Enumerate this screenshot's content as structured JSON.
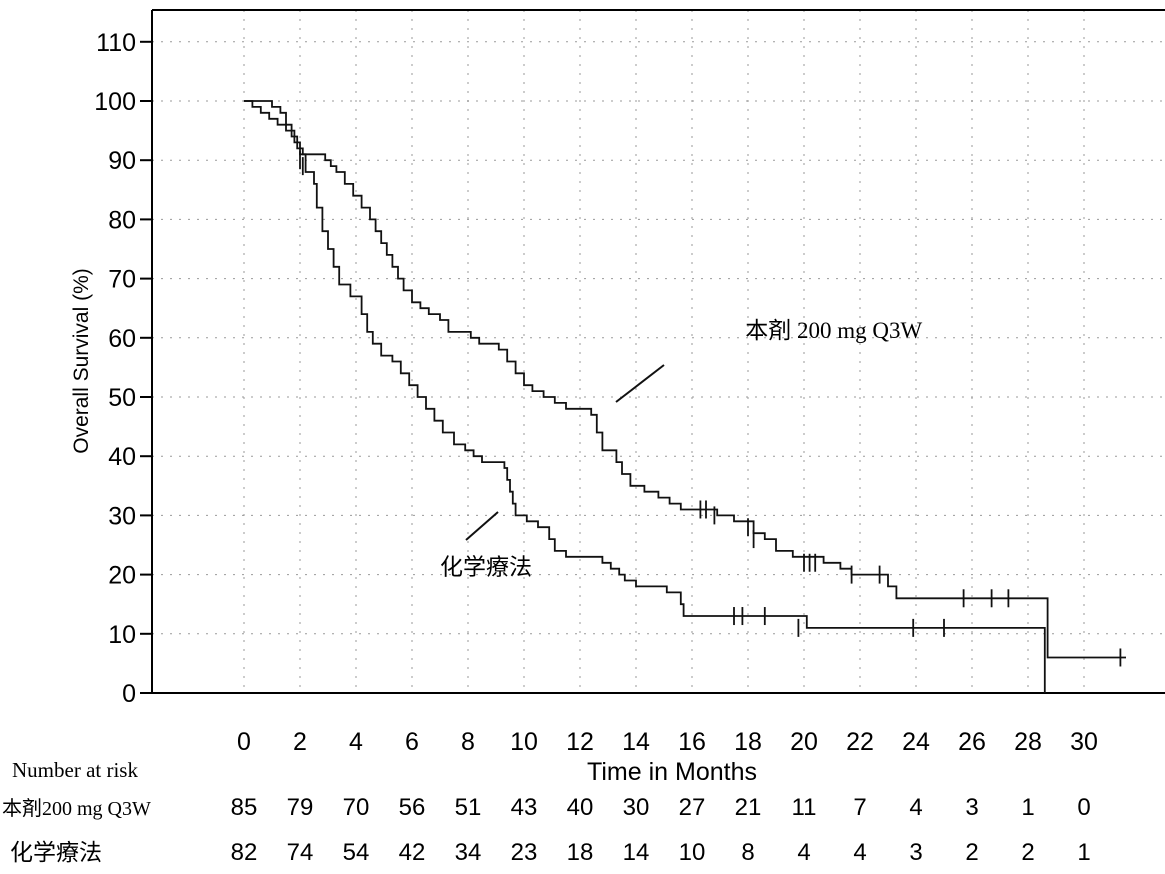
{
  "chart_data": {
    "type": "line",
    "step": true,
    "title": "",
    "ylabel": "Overall Survival (%)",
    "xlabel": "Time in Months",
    "xlim": [
      -2.4,
      32.2
    ],
    "ylim": [
      0,
      115
    ],
    "x_ticks": [
      0,
      2,
      4,
      6,
      8,
      10,
      12,
      14,
      16,
      18,
      20,
      22,
      24,
      26,
      28,
      30
    ],
    "y_ticks": [
      0,
      10,
      20,
      30,
      40,
      50,
      60,
      70,
      80,
      90,
      100,
      110
    ],
    "grid": "dotted vertical and horizontal lines at ticks",
    "series": [
      {
        "name": "本剤 200 mg Q3W",
        "points": [
          [
            0,
            100
          ],
          [
            0.9,
            100
          ],
          [
            1.0,
            99
          ],
          [
            1.3,
            98
          ],
          [
            1.5,
            96
          ],
          [
            1.7,
            94
          ],
          [
            1.9,
            92
          ],
          [
            2.1,
            91
          ],
          [
            2.7,
            91
          ],
          [
            2.9,
            90
          ],
          [
            3.1,
            89
          ],
          [
            3.3,
            88
          ],
          [
            3.6,
            86
          ],
          [
            3.9,
            84
          ],
          [
            4.2,
            82
          ],
          [
            4.5,
            80
          ],
          [
            4.7,
            78
          ],
          [
            4.9,
            76
          ],
          [
            5.1,
            74
          ],
          [
            5.3,
            72
          ],
          [
            5.5,
            70
          ],
          [
            5.7,
            68
          ],
          [
            6.0,
            66
          ],
          [
            6.3,
            65
          ],
          [
            6.6,
            64
          ],
          [
            7.0,
            63
          ],
          [
            7.3,
            61
          ],
          [
            8.1,
            60
          ],
          [
            8.4,
            59
          ],
          [
            9.1,
            58
          ],
          [
            9.4,
            56
          ],
          [
            9.7,
            54
          ],
          [
            10.0,
            52
          ],
          [
            10.3,
            51
          ],
          [
            10.7,
            50
          ],
          [
            11.1,
            49
          ],
          [
            11.5,
            48
          ],
          [
            12.4,
            47
          ],
          [
            12.6,
            44
          ],
          [
            12.8,
            41
          ],
          [
            13.3,
            39
          ],
          [
            13.5,
            37
          ],
          [
            13.8,
            35
          ],
          [
            14.3,
            34
          ],
          [
            14.8,
            33
          ],
          [
            15.2,
            32
          ],
          [
            15.6,
            31
          ],
          [
            16.9,
            30
          ],
          [
            17.5,
            29
          ],
          [
            18.2,
            27
          ],
          [
            18.6,
            26
          ],
          [
            19.0,
            24
          ],
          [
            19.6,
            23
          ],
          [
            20.7,
            22
          ],
          [
            21.3,
            21
          ],
          [
            21.7,
            20
          ],
          [
            23.0,
            18
          ],
          [
            23.3,
            16
          ],
          [
            28.6,
            16
          ],
          [
            28.7,
            6
          ],
          [
            31.5,
            6
          ]
        ],
        "censor_marks": [
          [
            2.0,
            90
          ],
          [
            16.3,
            31
          ],
          [
            16.5,
            31
          ],
          [
            16.8,
            30
          ],
          [
            18.0,
            28
          ],
          [
            18.2,
            26
          ],
          [
            20.0,
            22
          ],
          [
            20.2,
            22
          ],
          [
            20.4,
            22
          ],
          [
            21.7,
            20
          ],
          [
            22.7,
            20
          ],
          [
            25.7,
            16
          ],
          [
            26.7,
            16
          ],
          [
            27.3,
            16
          ],
          [
            31.3,
            6
          ]
        ]
      },
      {
        "name": "化学療法",
        "points": [
          [
            0,
            100
          ],
          [
            0.3,
            99
          ],
          [
            0.6,
            98
          ],
          [
            0.9,
            97
          ],
          [
            1.2,
            96
          ],
          [
            1.5,
            95
          ],
          [
            1.8,
            93
          ],
          [
            2.0,
            91
          ],
          [
            2.2,
            88
          ],
          [
            2.5,
            86
          ],
          [
            2.6,
            82
          ],
          [
            2.8,
            78
          ],
          [
            3.0,
            75
          ],
          [
            3.2,
            72
          ],
          [
            3.4,
            69
          ],
          [
            3.8,
            67
          ],
          [
            4.2,
            64
          ],
          [
            4.4,
            61
          ],
          [
            4.6,
            59
          ],
          [
            4.9,
            57
          ],
          [
            5.3,
            56
          ],
          [
            5.6,
            54
          ],
          [
            5.9,
            52
          ],
          [
            6.2,
            50
          ],
          [
            6.5,
            48
          ],
          [
            6.8,
            46
          ],
          [
            7.1,
            44
          ],
          [
            7.5,
            42
          ],
          [
            7.9,
            41
          ],
          [
            8.2,
            40
          ],
          [
            8.5,
            39
          ],
          [
            9.3,
            38
          ],
          [
            9.4,
            36
          ],
          [
            9.5,
            34
          ],
          [
            9.6,
            32
          ],
          [
            9.7,
            30
          ],
          [
            10.1,
            29
          ],
          [
            10.5,
            28
          ],
          [
            10.9,
            26
          ],
          [
            11.1,
            24
          ],
          [
            11.5,
            23
          ],
          [
            12.8,
            22
          ],
          [
            13.1,
            21
          ],
          [
            13.4,
            20
          ],
          [
            13.6,
            19
          ],
          [
            14.0,
            18
          ],
          [
            15.1,
            17
          ],
          [
            15.6,
            15
          ],
          [
            15.7,
            13
          ],
          [
            20.0,
            13
          ],
          [
            20.1,
            11
          ],
          [
            28.3,
            11
          ],
          [
            28.6,
            0
          ]
        ],
        "censor_marks": [
          [
            2.1,
            89
          ],
          [
            17.5,
            13
          ],
          [
            17.8,
            13
          ],
          [
            18.6,
            13
          ],
          [
            19.8,
            11
          ],
          [
            23.9,
            11
          ],
          [
            25.0,
            11
          ]
        ]
      }
    ],
    "annotations": [
      {
        "text": "本剤  200 mg Q3W",
        "x": 17.9,
        "y": 60
      },
      {
        "text": "化学療法",
        "x": 7.0,
        "y": 20
      }
    ],
    "risk_table": {
      "heading": "Number at risk",
      "rows": [
        {
          "label": "本剤200 mg Q3W",
          "values": [
            85,
            79,
            70,
            56,
            51,
            43,
            40,
            30,
            27,
            21,
            11,
            7,
            4,
            3,
            1,
            0
          ]
        },
        {
          "label": "化学療法",
          "values": [
            82,
            74,
            54,
            42,
            34,
            23,
            18,
            14,
            10,
            8,
            4,
            4,
            3,
            2,
            2,
            1
          ]
        }
      ]
    }
  }
}
